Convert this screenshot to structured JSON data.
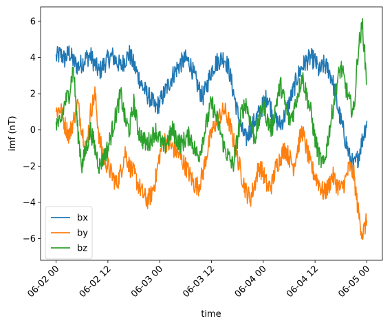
{
  "chart_data": {
    "type": "line",
    "title": "",
    "xlabel": "time",
    "ylabel": "imf (nT)",
    "x_tick_labels": [
      "06-02 00",
      "06-02 12",
      "06-03 00",
      "06-03 12",
      "06-04 00",
      "06-04 12",
      "06-05 00"
    ],
    "y_ticks": [
      -6,
      -4,
      -2,
      0,
      2,
      4,
      6
    ],
    "xlim_hours": [
      -3.6,
      75.6
    ],
    "ylim": [
      -7.2,
      6.8
    ],
    "legend_position": "lower-left",
    "series": [
      {
        "name": "bx",
        "color": "#1f77b4",
        "points": [
          [
            0,
            4.0
          ],
          [
            1,
            4.2
          ],
          [
            2,
            3.9
          ],
          [
            3,
            4.3
          ],
          [
            4,
            3.8
          ],
          [
            5,
            3.5
          ],
          [
            6,
            3.7
          ],
          [
            7,
            4.0
          ],
          [
            8,
            4.1
          ],
          [
            9,
            3.6
          ],
          [
            10,
            3.2
          ],
          [
            11,
            3.6
          ],
          [
            12,
            3.9
          ],
          [
            13,
            4.1
          ],
          [
            14,
            3.8
          ],
          [
            15,
            3.5
          ],
          [
            16,
            3.9
          ],
          [
            17,
            4.2
          ],
          [
            18,
            3.6
          ],
          [
            19,
            3.0
          ],
          [
            20,
            2.4
          ],
          [
            21,
            2.0
          ],
          [
            22,
            1.7
          ],
          [
            23,
            1.2
          ],
          [
            24,
            1.5
          ],
          [
            25,
            2.0
          ],
          [
            26,
            2.5
          ],
          [
            27,
            3.0
          ],
          [
            28,
            3.4
          ],
          [
            29,
            3.7
          ],
          [
            30,
            3.9
          ],
          [
            31,
            3.7
          ],
          [
            32,
            3.0
          ],
          [
            33,
            2.3
          ],
          [
            34,
            1.8
          ],
          [
            35,
            2.5
          ],
          [
            36,
            3.3
          ],
          [
            37,
            3.7
          ],
          [
            38,
            3.9
          ],
          [
            39,
            4.0
          ],
          [
            40,
            3.4
          ],
          [
            41,
            2.2
          ],
          [
            42,
            1.0
          ],
          [
            43,
            0.0
          ],
          [
            44,
            -0.5
          ],
          [
            45,
            0.0
          ],
          [
            46,
            0.5
          ],
          [
            47,
            0.9
          ],
          [
            48,
            1.4
          ],
          [
            49,
            1.9
          ],
          [
            50,
            1.0
          ],
          [
            51,
            0.5
          ],
          [
            52,
            0.3
          ],
          [
            53,
            0.8
          ],
          [
            54,
            1.5
          ],
          [
            55,
            2.2
          ],
          [
            56,
            3.0
          ],
          [
            57,
            3.5
          ],
          [
            58,
            3.8
          ],
          [
            59,
            4.0
          ],
          [
            60,
            3.8
          ],
          [
            61,
            3.2
          ],
          [
            62,
            3.6
          ],
          [
            63,
            3.4
          ],
          [
            64,
            2.8
          ],
          [
            65,
            1.5
          ],
          [
            66,
            0.5
          ],
          [
            67,
            -0.5
          ],
          [
            68,
            -1.5
          ],
          [
            69,
            -2.0
          ],
          [
            70,
            -1.5
          ],
          [
            71,
            -0.5
          ],
          [
            72,
            0.5
          ]
        ]
      },
      {
        "name": "by",
        "color": "#ff7f0e",
        "points": [
          [
            0,
            1.0
          ],
          [
            1,
            1.2
          ],
          [
            2,
            0.3
          ],
          [
            3,
            -0.3
          ],
          [
            4,
            0.5
          ],
          [
            5,
            1.5
          ],
          [
            6,
            0.0
          ],
          [
            7,
            -1.0
          ],
          [
            8,
            1.0
          ],
          [
            9,
            2.0
          ],
          [
            10,
            -0.5
          ],
          [
            11,
            -1.5
          ],
          [
            12,
            -2.0
          ],
          [
            13,
            -2.5
          ],
          [
            14,
            -3.0
          ],
          [
            15,
            -2.3
          ],
          [
            16,
            -1.2
          ],
          [
            17,
            -2.0
          ],
          [
            18,
            -2.4
          ],
          [
            19,
            -3.0
          ],
          [
            20,
            -3.5
          ],
          [
            21,
            -3.9
          ],
          [
            22,
            -3.6
          ],
          [
            23,
            -2.8
          ],
          [
            24,
            -1.4
          ],
          [
            25,
            -0.5
          ],
          [
            26,
            -0.8
          ],
          [
            27,
            -1.0
          ],
          [
            28,
            -1.2
          ],
          [
            29,
            -1.6
          ],
          [
            30,
            -2.0
          ],
          [
            31,
            -2.5
          ],
          [
            32,
            -3.0
          ],
          [
            33,
            -3.1
          ],
          [
            34,
            -2.4
          ],
          [
            35,
            -1.2
          ],
          [
            36,
            -0.2
          ],
          [
            37,
            0.4
          ],
          [
            38,
            0.8
          ],
          [
            39,
            1.1
          ],
          [
            40,
            0.5
          ],
          [
            41,
            -0.5
          ],
          [
            42,
            -1.5
          ],
          [
            43,
            -2.5
          ],
          [
            44,
            -3.4
          ],
          [
            45,
            -3.8
          ],
          [
            46,
            -3.0
          ],
          [
            47,
            -2.0
          ],
          [
            48,
            -2.4
          ],
          [
            49,
            -3.2
          ],
          [
            50,
            -3.0
          ],
          [
            51,
            -2.0
          ],
          [
            52,
            -1.5
          ],
          [
            53,
            -1.0
          ],
          [
            54,
            -1.5
          ],
          [
            55,
            -2.0
          ],
          [
            56,
            -1.0
          ],
          [
            57,
            0.0
          ],
          [
            58,
            -1.0
          ],
          [
            59,
            -2.0
          ],
          [
            60,
            -2.5
          ],
          [
            61,
            -3.0
          ],
          [
            62,
            -3.5
          ],
          [
            63,
            -3.2
          ],
          [
            64,
            -2.5
          ],
          [
            65,
            -3.0
          ],
          [
            66,
            -3.3
          ],
          [
            67,
            -2.8
          ],
          [
            68,
            -2.0
          ],
          [
            69,
            -2.5
          ],
          [
            70,
            -4.5
          ],
          [
            71,
            -5.8
          ],
          [
            72,
            -5.0
          ]
        ]
      },
      {
        "name": "bz",
        "color": "#2ca02c",
        "points": [
          [
            0,
            0.5
          ],
          [
            1,
            0.2
          ],
          [
            2,
            1.5
          ],
          [
            3,
            2.0
          ],
          [
            4,
            3.5
          ],
          [
            5,
            0.0
          ],
          [
            6,
            -2.0
          ],
          [
            7,
            -1.0
          ],
          [
            8,
            0.0
          ],
          [
            9,
            -1.0
          ],
          [
            10,
            -2.0
          ],
          [
            11,
            -1.5
          ],
          [
            12,
            -1.0
          ],
          [
            13,
            0.0
          ],
          [
            14,
            1.0
          ],
          [
            15,
            2.0
          ],
          [
            16,
            0.5
          ],
          [
            17,
            0.0
          ],
          [
            18,
            1.5
          ],
          [
            19,
            0.0
          ],
          [
            20,
            -0.5
          ],
          [
            21,
            -0.8
          ],
          [
            22,
            -0.5
          ],
          [
            23,
            0.0
          ],
          [
            24,
            -0.5
          ],
          [
            25,
            -1.0
          ],
          [
            26,
            -0.5
          ],
          [
            27,
            0.0
          ],
          [
            28,
            -0.5
          ],
          [
            29,
            -0.8
          ],
          [
            30,
            -0.5
          ],
          [
            31,
            -0.3
          ],
          [
            32,
            -1.0
          ],
          [
            33,
            -1.5
          ],
          [
            34,
            -0.5
          ],
          [
            35,
            0.5
          ],
          [
            36,
            1.5
          ],
          [
            37,
            0.8
          ],
          [
            38,
            0.0
          ],
          [
            39,
            -1.0
          ],
          [
            40,
            -1.5
          ],
          [
            41,
            -2.0
          ],
          [
            42,
            -0.5
          ],
          [
            43,
            1.0
          ],
          [
            44,
            1.5
          ],
          [
            45,
            0.5
          ],
          [
            46,
            -0.5
          ],
          [
            47,
            0.5
          ],
          [
            48,
            1.5
          ],
          [
            49,
            0.5
          ],
          [
            50,
            0.0
          ],
          [
            51,
            1.5
          ],
          [
            52,
            2.5
          ],
          [
            53,
            1.5
          ],
          [
            54,
            0.5
          ],
          [
            55,
            1.0
          ],
          [
            56,
            2.0
          ],
          [
            57,
            3.0
          ],
          [
            58,
            2.0
          ],
          [
            59,
            1.0
          ],
          [
            60,
            -0.5
          ],
          [
            61,
            -1.5
          ],
          [
            62,
            -2.0
          ],
          [
            63,
            -0.5
          ],
          [
            64,
            1.0
          ],
          [
            65,
            2.5
          ],
          [
            66,
            3.5
          ],
          [
            67,
            2.5
          ],
          [
            68,
            1.5
          ],
          [
            69,
            1.0
          ],
          [
            70,
            4.5
          ],
          [
            71,
            5.8
          ],
          [
            72,
            2.5
          ]
        ]
      }
    ]
  }
}
